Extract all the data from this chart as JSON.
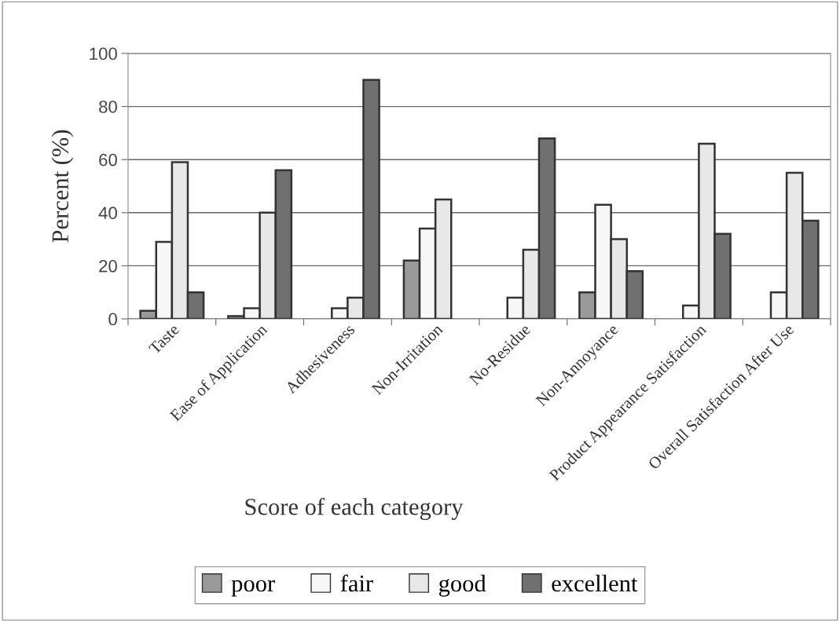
{
  "chart_data": {
    "type": "bar",
    "xlabel": "Score of each category",
    "ylabel": "Percent (%)",
    "categories": [
      "Taste",
      "Ease of Application",
      "Adhesiveness",
      "Non-Irritation",
      "No-Residue",
      "Non-Annoyance",
      "Product Appearance Satisfaction",
      "Overall Satisfaction After Use"
    ],
    "series": [
      {
        "name": "poor",
        "color": "#9a9a9a",
        "values": [
          3,
          1,
          null,
          22,
          null,
          10,
          null,
          null
        ]
      },
      {
        "name": "fair",
        "color": "#f7f7f7",
        "values": [
          29,
          4,
          4,
          34,
          8,
          43,
          5,
          10
        ]
      },
      {
        "name": "good",
        "color": "#e8e8e8",
        "values": [
          59,
          40,
          8,
          45,
          26,
          30,
          66,
          55
        ]
      },
      {
        "name": "excellent",
        "color": "#707070",
        "values": [
          10,
          56,
          90,
          null,
          68,
          18,
          32,
          37
        ]
      }
    ],
    "ylim": [
      0,
      100
    ],
    "yticks": [
      0,
      20,
      40,
      60,
      80,
      100
    ],
    "grid": "y",
    "legend": "bottom"
  }
}
